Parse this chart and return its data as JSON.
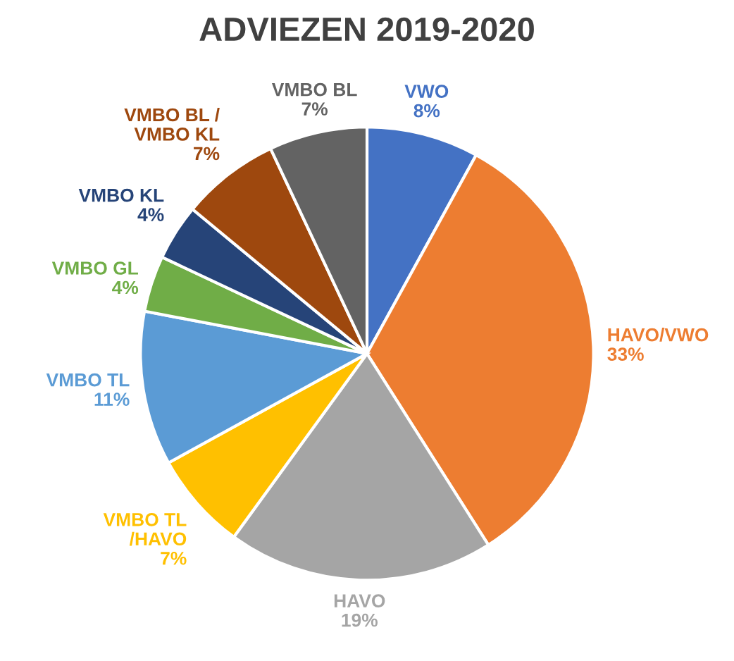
{
  "chart_data": {
    "type": "pie",
    "title": "ADVIEZEN 2019-2020",
    "categories": [
      "VWO",
      "HAVO/VWO",
      "HAVO",
      "VMBO TL\n/HAVO",
      "VMBO TL",
      "VMBO GL",
      "VMBO KL",
      "VMBO BL /\nVMBO KL",
      "VMBO BL"
    ],
    "values": [
      8,
      33,
      19,
      7,
      11,
      4,
      4,
      7,
      7
    ],
    "value_labels": [
      "8%",
      "33%",
      "19%",
      "7%",
      "11%",
      "4%",
      "4%",
      "7%",
      "7%"
    ],
    "colors": [
      "#4472c4",
      "#ed7d31",
      "#a5a5a5",
      "#ffc000",
      "#5b9bd5",
      "#70ad47",
      "#264478",
      "#9e480e",
      "#636363"
    ],
    "legend": false
  }
}
